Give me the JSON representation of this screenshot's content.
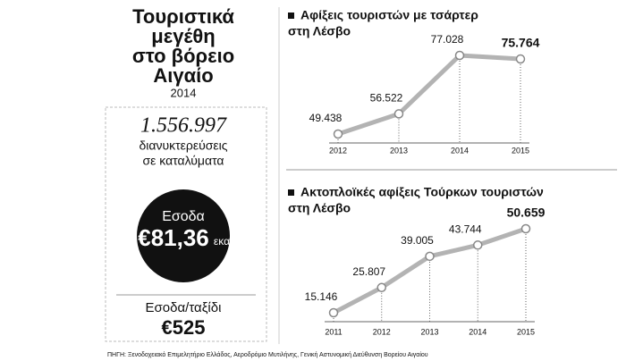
{
  "panel": {
    "title": [
      "Τουριστικά",
      "μεγέθη",
      "στο βόρειο",
      "Αιγαίο"
    ],
    "year": "2014",
    "overnights": "1.556.997",
    "overnights_label": [
      "διανυκτερεύσεις",
      "σε καταλύματα"
    ],
    "revenue_label": "Εσοδα",
    "revenue": "€81,36",
    "revenue_unit": "εκατ.",
    "per_trip_label": "Εσοδα/ταξίδι",
    "per_trip": "€525"
  },
  "source": "ΠΗΓΗ: Ξενοδοχειακό Επιμελητήριο Ελλάδος, Αεροδρόμιο Μυτιλήνης, Γενική Αστυνομική Διεύθυνση Βορείου Αιγαίου",
  "chart_data": [
    {
      "type": "line",
      "title": [
        "Αφίξεις τουριστών με τσάρτερ",
        "στη Λέσβο"
      ],
      "categories": [
        "2012",
        "2013",
        "2014",
        "2015"
      ],
      "values": [
        49438,
        56522,
        77028,
        75764
      ],
      "value_labels": [
        "49.438",
        "56.522",
        "77.028",
        "75.764"
      ],
      "color": "#b3b3b3"
    },
    {
      "type": "line",
      "title": [
        "Ακτοπλοϊκές αφίξεις Τούρκων τουριστών",
        "στη Λέσβο"
      ],
      "categories": [
        "2011",
        "2012",
        "2013",
        "2014",
        "2015"
      ],
      "values": [
        15146,
        25807,
        39005,
        43744,
        50659
      ],
      "value_labels": [
        "15.146",
        "25.807",
        "39.005",
        "43.744",
        "50.659"
      ],
      "color": "#b3b3b3"
    }
  ]
}
